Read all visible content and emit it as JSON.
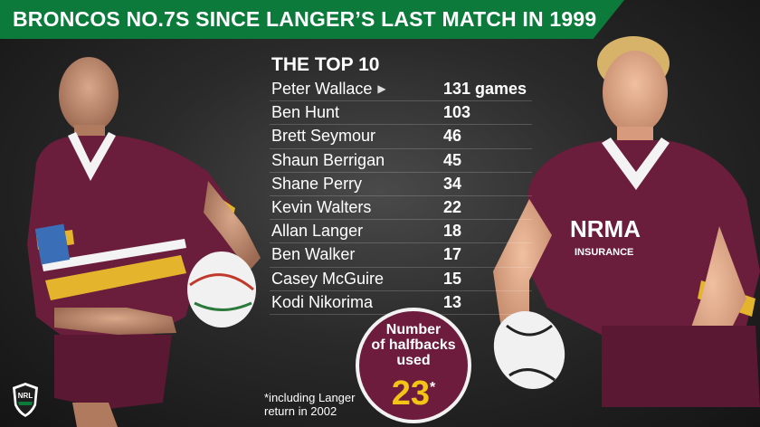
{
  "title": "BRONCOS NO.7S SINCE LANGER’S LAST MATCH IN 1999",
  "list": {
    "heading": "THE TOP 10",
    "rows": [
      {
        "name": "Peter Wallace",
        "value": "131 games",
        "arrow": "▶"
      },
      {
        "name": "Ben Hunt",
        "value": "103"
      },
      {
        "name": "Brett Seymour",
        "value": "46"
      },
      {
        "name": "Shaun Berrigan",
        "value": "45"
      },
      {
        "name": "Shane Perry",
        "value": "34"
      },
      {
        "name": "Kevin Walters",
        "value": "22"
      },
      {
        "name": "Allan Langer",
        "value": "18"
      },
      {
        "name": "Ben Walker",
        "value": "17"
      },
      {
        "name": "Casey McGuire",
        "value": "15"
      },
      {
        "name": "Kodi Nikorima",
        "value": "13"
      }
    ]
  },
  "badge": {
    "line1": "Number",
    "line2": "of halfbacks",
    "line3": "used",
    "number": "23",
    "asterisk": "*"
  },
  "footnote": {
    "line1": "*including Langer",
    "line2": "return in 2002"
  },
  "logo": {
    "text": "NRL"
  },
  "colors": {
    "title_bar": "#0b7a3b",
    "badge_fill": "#6d1c3e",
    "badge_number": "#f3c316",
    "jersey_maroon": "#6b1d3c",
    "jersey_gold": "#e4b52c"
  }
}
